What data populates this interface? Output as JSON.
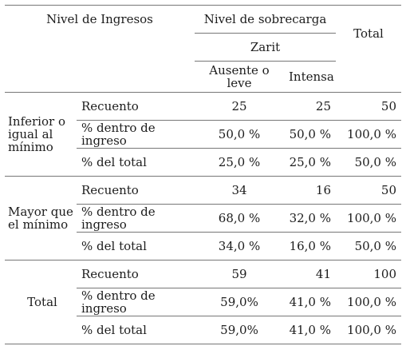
{
  "header": {
    "col_income": "Nivel de Ingresos",
    "col_burden": "Nivel de sobrecarga",
    "subheader_zarit": "Zarit",
    "col_total": "Total",
    "sub_low": "Ausente o leve",
    "sub_intense": "Intensa"
  },
  "groups": [
    {
      "label": "Inferior o igual al mínimo",
      "rows": [
        {
          "metric": "Recuento",
          "low": "25",
          "intense": "25",
          "total": "50"
        },
        {
          "metric": "% dentro de ingreso",
          "low": "50,0 %",
          "intense": "50,0 %",
          "total": "100,0 %"
        },
        {
          "metric": "% del total",
          "low": "25,0 %",
          "intense": "25,0 %",
          "total": "50,0 %"
        }
      ]
    },
    {
      "label": "Mayor que el mínimo",
      "rows": [
        {
          "metric": "Recuento",
          "low": "34",
          "intense": "16",
          "total": "50"
        },
        {
          "metric": "% dentro de ingreso",
          "low": "68,0 %",
          "intense": "32,0 %",
          "total": "100,0 %"
        },
        {
          "metric": "% del total",
          "low": "34,0 %",
          "intense": "16,0 %",
          "total": "50,0 %"
        }
      ]
    },
    {
      "label": "Total",
      "rows": [
        {
          "metric": "Recuento",
          "low": "59",
          "intense": "41",
          "total": "100"
        },
        {
          "metric": "% dentro de ingreso",
          "low": "59,0%",
          "intense": "41,0 %",
          "total": "100,0 %"
        },
        {
          "metric": "% del total",
          "low": "59,0%",
          "intense": "41,0 %",
          "total": "100,0 %"
        }
      ]
    }
  ]
}
